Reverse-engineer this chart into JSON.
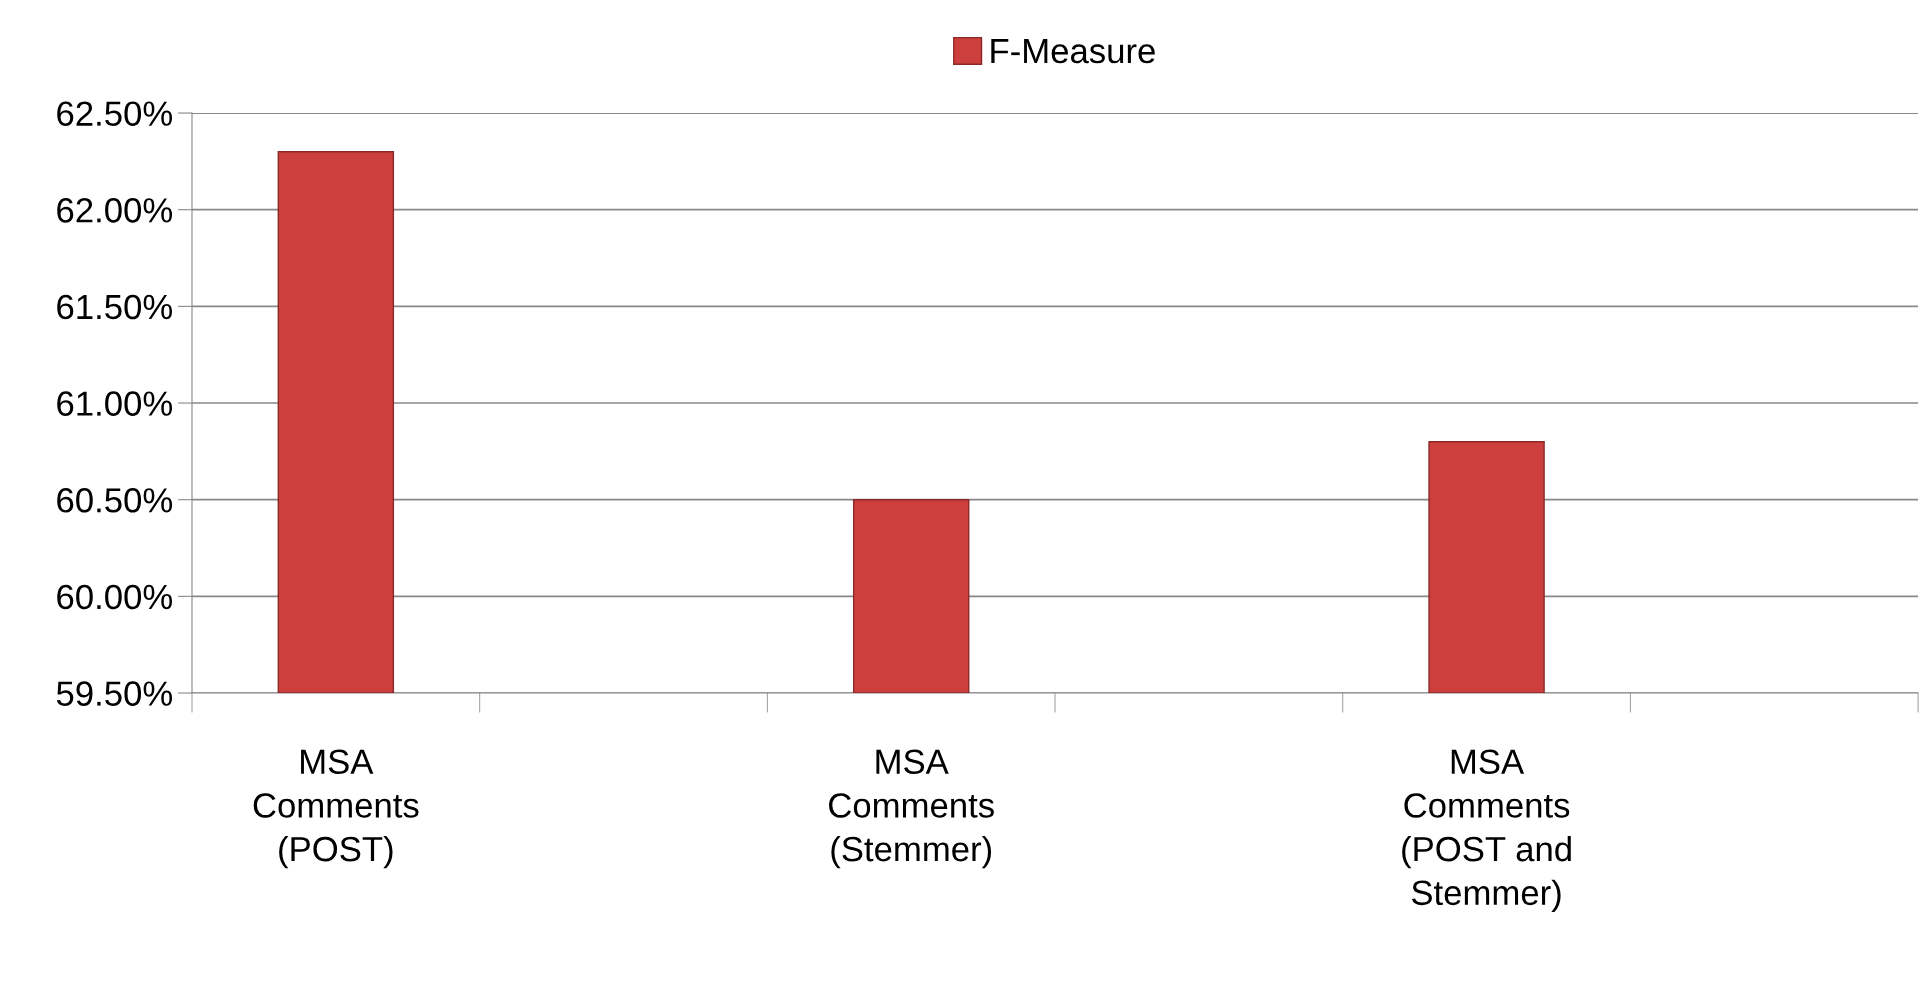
{
  "chart_data": {
    "type": "bar",
    "categories": [
      "MSA\nComments\n(POST)",
      null,
      "MSA\nComments\n(Stemmer)",
      null,
      "MSA\nComments\n(POST and\nStemmer)",
      null
    ],
    "series": [
      {
        "name": "F-Measure",
        "color": "#cc3f3d",
        "values": [
          62.3,
          null,
          60.5,
          null,
          60.8,
          null
        ]
      }
    ],
    "ylim": [
      59.5,
      62.5
    ],
    "yticks": [
      {
        "value": 59.5,
        "label": "59.50%"
      },
      {
        "value": 60.0,
        "label": "60.00%"
      },
      {
        "value": 60.5,
        "label": "60.50%"
      },
      {
        "value": 61.0,
        "label": "61.00%"
      },
      {
        "value": 61.5,
        "label": "61.50%"
      },
      {
        "value": 62.0,
        "label": "62.00%"
      },
      {
        "value": 62.5,
        "label": "62.50%"
      }
    ],
    "grid": "y",
    "legend": "top"
  }
}
